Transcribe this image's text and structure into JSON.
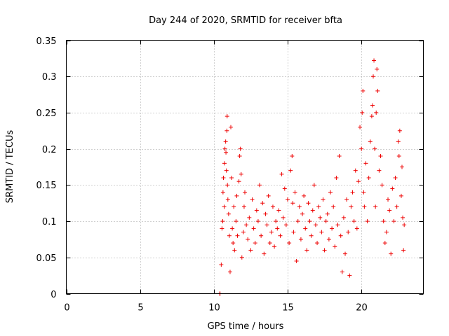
{
  "chart_data": {
    "type": "scatter",
    "title": "Day 244 of 2020, SRMTID for receiver bfta",
    "xlabel": "GPS time / hours",
    "ylabel": "SRMTID / TECUs",
    "xlim": [
      0,
      24.2
    ],
    "ylim": [
      0,
      0.35
    ],
    "xticks": [
      "0",
      "5",
      "10",
      "15",
      "20"
    ],
    "yticks": [
      "0",
      "0.05",
      "0.1",
      "0.15",
      "0.2",
      "0.25",
      "0.3",
      "0.35"
    ],
    "grid": true,
    "marker": "+",
    "color": "#ee0000",
    "series": [
      {
        "name": "bfta",
        "points": [
          [
            10.4,
            0.0
          ],
          [
            10.42,
            0.0
          ],
          [
            10.5,
            0.04
          ],
          [
            10.55,
            0.09
          ],
          [
            10.6,
            0.1
          ],
          [
            10.62,
            0.14
          ],
          [
            10.65,
            0.16
          ],
          [
            10.7,
            0.12
          ],
          [
            10.72,
            0.18
          ],
          [
            10.75,
            0.2
          ],
          [
            10.8,
            0.21
          ],
          [
            10.82,
            0.195
          ],
          [
            10.85,
            0.17
          ],
          [
            10.88,
            0.225
          ],
          [
            10.9,
            0.245
          ],
          [
            10.92,
            0.15
          ],
          [
            10.95,
            0.13
          ],
          [
            11.0,
            0.11
          ],
          [
            11.05,
            0.08
          ],
          [
            11.1,
            0.03
          ],
          [
            11.15,
            0.23
          ],
          [
            11.2,
            0.16
          ],
          [
            11.25,
            0.09
          ],
          [
            11.3,
            0.07
          ],
          [
            11.35,
            0.12
          ],
          [
            11.4,
            0.06
          ],
          [
            11.5,
            0.1
          ],
          [
            11.55,
            0.135
          ],
          [
            11.6,
            0.08
          ],
          [
            11.7,
            0.155
          ],
          [
            11.75,
            0.19
          ],
          [
            11.8,
            0.2
          ],
          [
            11.85,
            0.165
          ],
          [
            11.9,
            0.05
          ],
          [
            12.0,
            0.085
          ],
          [
            12.05,
            0.12
          ],
          [
            12.1,
            0.14
          ],
          [
            12.2,
            0.095
          ],
          [
            12.3,
            0.075
          ],
          [
            12.4,
            0.105
          ],
          [
            12.5,
            0.06
          ],
          [
            12.6,
            0.13
          ],
          [
            12.7,
            0.09
          ],
          [
            12.8,
            0.07
          ],
          [
            12.9,
            0.115
          ],
          [
            13.0,
            0.1
          ],
          [
            13.1,
            0.15
          ],
          [
            13.2,
            0.08
          ],
          [
            13.3,
            0.125
          ],
          [
            13.4,
            0.055
          ],
          [
            13.5,
            0.11
          ],
          [
            13.6,
            0.095
          ],
          [
            13.7,
            0.135
          ],
          [
            13.8,
            0.07
          ],
          [
            13.9,
            0.085
          ],
          [
            14.0,
            0.12
          ],
          [
            14.1,
            0.065
          ],
          [
            14.2,
            0.1
          ],
          [
            14.3,
            0.09
          ],
          [
            14.4,
            0.115
          ],
          [
            14.5,
            0.08
          ],
          [
            14.6,
            0.165
          ],
          [
            14.7,
            0.105
          ],
          [
            14.8,
            0.145
          ],
          [
            14.9,
            0.095
          ],
          [
            15.0,
            0.13
          ],
          [
            15.1,
            0.07
          ],
          [
            15.2,
            0.17
          ],
          [
            15.3,
            0.19
          ],
          [
            15.35,
            0.125
          ],
          [
            15.4,
            0.085
          ],
          [
            15.5,
            0.14
          ],
          [
            15.6,
            0.045
          ],
          [
            15.7,
            0.1
          ],
          [
            15.8,
            0.12
          ],
          [
            15.9,
            0.075
          ],
          [
            16.0,
            0.11
          ],
          [
            16.1,
            0.135
          ],
          [
            16.2,
            0.09
          ],
          [
            16.3,
            0.06
          ],
          [
            16.4,
            0.125
          ],
          [
            16.5,
            0.1
          ],
          [
            16.6,
            0.08
          ],
          [
            16.7,
            0.115
          ],
          [
            16.8,
            0.15
          ],
          [
            16.9,
            0.095
          ],
          [
            17.0,
            0.07
          ],
          [
            17.1,
            0.12
          ],
          [
            17.2,
            0.105
          ],
          [
            17.3,
            0.085
          ],
          [
            17.4,
            0.13
          ],
          [
            17.5,
            0.06
          ],
          [
            17.6,
            0.1
          ],
          [
            17.7,
            0.11
          ],
          [
            17.8,
            0.075
          ],
          [
            17.9,
            0.14
          ],
          [
            18.0,
            0.09
          ],
          [
            18.1,
            0.12
          ],
          [
            18.2,
            0.065
          ],
          [
            18.3,
            0.16
          ],
          [
            18.4,
            0.095
          ],
          [
            18.5,
            0.19
          ],
          [
            18.6,
            0.08
          ],
          [
            18.7,
            0.03
          ],
          [
            18.8,
            0.105
          ],
          [
            18.9,
            0.055
          ],
          [
            19.0,
            0.13
          ],
          [
            19.1,
            0.085
          ],
          [
            19.2,
            0.025
          ],
          [
            19.3,
            0.12
          ],
          [
            19.4,
            0.14
          ],
          [
            19.5,
            0.1
          ],
          [
            19.6,
            0.17
          ],
          [
            19.7,
            0.09
          ],
          [
            19.8,
            0.155
          ],
          [
            19.9,
            0.23
          ],
          [
            20.0,
            0.2
          ],
          [
            20.05,
            0.25
          ],
          [
            20.1,
            0.28
          ],
          [
            20.15,
            0.14
          ],
          [
            20.2,
            0.12
          ],
          [
            20.3,
            0.18
          ],
          [
            20.4,
            0.1
          ],
          [
            20.5,
            0.16
          ],
          [
            20.6,
            0.21
          ],
          [
            20.7,
            0.245
          ],
          [
            20.75,
            0.26
          ],
          [
            20.8,
            0.3
          ],
          [
            20.85,
            0.322
          ],
          [
            20.9,
            0.2
          ],
          [
            20.95,
            0.12
          ],
          [
            21.0,
            0.25
          ],
          [
            21.05,
            0.31
          ],
          [
            21.1,
            0.28
          ],
          [
            21.2,
            0.17
          ],
          [
            21.3,
            0.19
          ],
          [
            21.4,
            0.15
          ],
          [
            21.5,
            0.1
          ],
          [
            21.6,
            0.07
          ],
          [
            21.7,
            0.085
          ],
          [
            21.8,
            0.13
          ],
          [
            21.9,
            0.115
          ],
          [
            22.0,
            0.055
          ],
          [
            22.1,
            0.145
          ],
          [
            22.2,
            0.1
          ],
          [
            22.3,
            0.16
          ],
          [
            22.4,
            0.12
          ],
          [
            22.5,
            0.21
          ],
          [
            22.55,
            0.19
          ],
          [
            22.6,
            0.225
          ],
          [
            22.7,
            0.135
          ],
          [
            22.75,
            0.175
          ],
          [
            22.8,
            0.105
          ],
          [
            22.85,
            0.06
          ],
          [
            22.9,
            0.095
          ]
        ]
      }
    ]
  }
}
